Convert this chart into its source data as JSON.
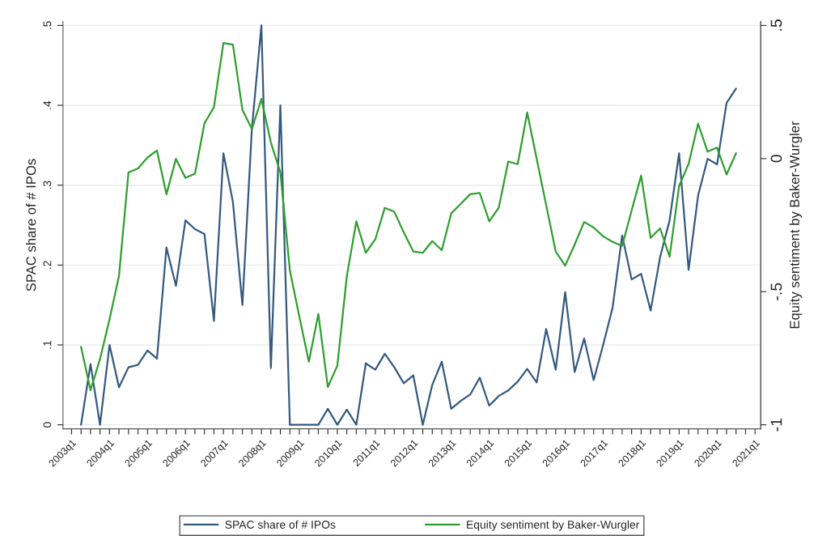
{
  "chart_data": {
    "type": "line",
    "ylabel": "SPAC share of # IPOs",
    "y2label": "Equity sentiment by Baker-Wurgler",
    "categories": [
      "2003q1",
      null,
      null,
      null,
      "2004q1",
      null,
      null,
      null,
      "2005q1",
      null,
      null,
      null,
      "2006q1",
      null,
      null,
      null,
      "2007q1",
      null,
      null,
      null,
      "2008q1",
      null,
      null,
      null,
      "2009q1",
      null,
      null,
      null,
      "2010q1",
      null,
      null,
      null,
      "2011q1",
      null,
      null,
      null,
      "2012q1",
      null,
      null,
      null,
      "2013q1",
      null,
      null,
      null,
      "2014q1",
      null,
      null,
      null,
      "2015q1",
      null,
      null,
      null,
      "2016q1",
      null,
      null,
      null,
      "2017q1",
      null,
      null,
      null,
      "2018q1",
      null,
      null,
      null,
      "2019q1",
      null,
      null,
      null,
      "2020q1",
      null,
      null,
      null,
      "2021q1"
    ],
    "series": [
      {
        "name": "SPAC share of # IPOs",
        "color": "#34597f",
        "values": [
          null,
          0,
          0.076,
          0,
          0.1,
          0.047,
          0.072,
          0.075,
          0.093,
          0.083,
          0.222,
          0.174,
          0.256,
          0.245,
          0.239,
          0.13,
          0.34,
          0.279,
          0.15,
          0.371,
          0.5,
          0.071,
          0.4,
          0,
          0,
          0,
          0,
          0.02,
          0,
          0.019,
          0,
          0.077,
          0.069,
          0.089,
          0.072,
          0.052,
          0.062,
          0,
          0.05,
          0.079,
          0.02,
          0.03,
          0.038,
          0.059,
          0.024,
          0.036,
          0.043,
          0.054,
          0.07,
          0.053,
          0.12,
          0.069,
          0.166,
          0.066,
          0.108,
          0.056,
          0.1,
          0.147,
          0.237,
          0.182,
          0.189,
          0.143,
          0.21,
          0.256,
          0.34,
          0.194,
          0.287,
          0.333,
          0.326,
          0.403,
          0.421,
          null,
          null
        ]
      },
      {
        "name": "Equity sentiment by Baker-Wurgler",
        "color": "#2e9e2e",
        "axis": "y2",
        "values": [
          null,
          -0.707,
          -0.87,
          -0.753,
          -0.604,
          -0.441,
          -0.052,
          -0.037,
          0.004,
          0.03,
          -0.134,
          -0.001,
          -0.073,
          -0.057,
          0.132,
          0.193,
          0.434,
          0.428,
          0.183,
          0.111,
          0.224,
          0.06,
          -0.052,
          -0.42,
          -0.594,
          -0.763,
          -0.584,
          -0.858,
          -0.778,
          -0.441,
          -0.236,
          -0.354,
          -0.303,
          -0.185,
          -0.2,
          -0.277,
          -0.349,
          -0.354,
          -0.31,
          -0.344,
          -0.206,
          -0.17,
          -0.134,
          -0.129,
          -0.236,
          -0.185,
          -0.011,
          -0.021,
          0.173,
          -0.001,
          -0.175,
          -0.349,
          -0.402,
          -0.323,
          -0.238,
          -0.259,
          -0.292,
          -0.313,
          -0.328,
          -0.195,
          -0.064,
          -0.298,
          -0.262,
          -0.369,
          -0.103,
          -0.02,
          0.131,
          0.026,
          0.041,
          -0.06,
          0.02,
          null,
          null
        ]
      }
    ],
    "ylim": [
      -0.005,
      0.505
    ],
    "yticks": [
      {
        "value": 0,
        "label": "0"
      },
      {
        "value": 0.1,
        "label": ".1"
      },
      {
        "value": 0.2,
        "label": ".2"
      },
      {
        "value": 0.3,
        "label": ".3"
      },
      {
        "value": 0.4,
        "label": ".4"
      },
      {
        "value": 0.5,
        "label": ".5"
      }
    ],
    "y2lim": [
      -1.015,
      0.515
    ],
    "y2ticks": [
      {
        "value": -1,
        "label": "-1"
      },
      {
        "value": -0.5,
        "label": "-.5"
      },
      {
        "value": 0,
        "label": "0"
      },
      {
        "value": 0.5,
        "label": ".5"
      }
    ],
    "grid": "y",
    "legend": "bottom",
    "line_style": "solid",
    "marker": "none"
  }
}
